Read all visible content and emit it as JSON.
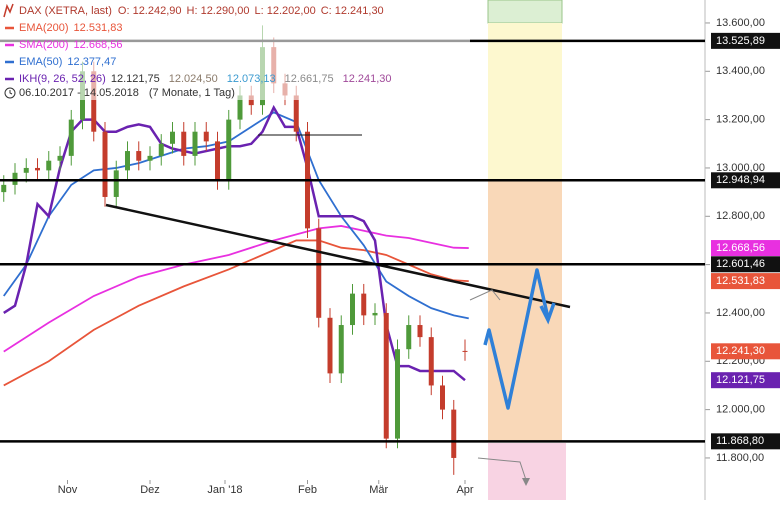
{
  "chart_data": {
    "type": "candlestick",
    "title": "DAX (XETRA, last)",
    "quote": [
      "O: 12.242,90",
      "H: 12.290,00",
      "L: 12.202,00",
      "C: 12.241,30"
    ],
    "period": "06.10.2017 - 14.05.2018",
    "period_note": "(7 Monate, 1 Tag)",
    "xlim": [
      -1,
      187
    ],
    "ylim": [
      11626,
      13695
    ],
    "xticks": [
      {
        "value": 17,
        "label": "Nov"
      },
      {
        "value": 39,
        "label": "Dez"
      },
      {
        "value": 59,
        "label": "Jan '18"
      },
      {
        "value": 81,
        "label": "Feb"
      },
      {
        "value": 100,
        "label": "Mär"
      },
      {
        "value": 123,
        "label": "Apr"
      }
    ],
    "yticks": [
      {
        "value": 13600,
        "label": "13.600,00"
      },
      {
        "value": 13400,
        "label": "13.400,00"
      },
      {
        "value": 13200,
        "label": "13.200,00"
      },
      {
        "value": 13000,
        "label": "13.000,00"
      },
      {
        "value": 12800,
        "label": "12.800,00"
      },
      {
        "value": 12600,
        "label": "12.600,00"
      },
      {
        "value": 12400,
        "label": "12.400,00"
      },
      {
        "value": 12200,
        "label": "12.200,00"
      },
      {
        "value": 12000,
        "label": "12.000,00"
      },
      {
        "value": 11800,
        "label": "11.800,00"
      }
    ],
    "x": [
      0,
      3,
      6,
      9,
      12,
      15,
      18,
      21,
      24,
      27,
      30,
      33,
      36,
      39,
      42,
      45,
      48,
      51,
      54,
      57,
      60,
      63,
      66,
      69,
      72,
      75,
      78,
      81,
      84,
      87,
      90,
      93,
      96,
      99,
      102,
      105,
      108,
      111,
      114,
      117,
      120,
      123
    ],
    "open": [
      12900,
      12930,
      12980,
      13000,
      12990,
      13030,
      13050,
      13200,
      13400,
      13150,
      12880,
      12990,
      13070,
      13030,
      13050,
      13100,
      13150,
      13050,
      13150,
      13110,
      12950,
      13200,
      13300,
      13260,
      13500,
      13350,
      13300,
      13150,
      12750,
      12380,
      12150,
      12350,
      12480,
      12390,
      12400,
      11880,
      12250,
      12350,
      12300,
      12100,
      12000,
      12242.9
    ],
    "high": [
      12970,
      13020,
      13040,
      13040,
      13070,
      13090,
      13240,
      13440,
      13440,
      13190,
      13030,
      13110,
      13110,
      13090,
      13140,
      13190,
      13190,
      13190,
      13190,
      13150,
      13240,
      13340,
      13340,
      13590,
      13540,
      13390,
      13340,
      13190,
      12790,
      12420,
      12390,
      12520,
      12520,
      12440,
      12440,
      12290,
      12390,
      12390,
      12340,
      12140,
      12040,
      12290
    ],
    "low": [
      12860,
      12890,
      12940,
      12950,
      12950,
      12990,
      13010,
      13160,
      13110,
      12840,
      12840,
      12950,
      12990,
      12990,
      13010,
      13060,
      13010,
      13010,
      13070,
      12910,
      12910,
      13160,
      13220,
      13220,
      13310,
      13260,
      13110,
      12710,
      12340,
      12110,
      12110,
      12310,
      12350,
      12350,
      11840,
      11840,
      12210,
      12260,
      12060,
      11960,
      11730,
      12202
    ],
    "close": [
      12930,
      12980,
      13000,
      12990,
      13030,
      13050,
      13200,
      13400,
      13150,
      12880,
      12990,
      13070,
      13030,
      13050,
      13100,
      13150,
      13050,
      13150,
      13110,
      12950,
      13200,
      13300,
      13260,
      13500,
      13350,
      13300,
      13150,
      12750,
      12380,
      12150,
      12350,
      12480,
      12390,
      12400,
      11880,
      12250,
      12350,
      12300,
      12100,
      12000,
      11800,
      12241.3
    ],
    "up_color": "#4f9a3a",
    "down_color": "#c43c2c",
    "series": [
      {
        "name": "EMA(200)",
        "color": "#e8553a",
        "x": [
          0,
          12,
          24,
          36,
          48,
          60,
          72,
          78,
          84,
          90,
          96,
          102,
          108,
          114,
          120,
          124
        ],
        "values": [
          12100,
          12200,
          12330,
          12430,
          12510,
          12580,
          12660,
          12700,
          12700,
          12670,
          12660,
          12640,
          12600,
          12560,
          12535,
          12531.83
        ],
        "last": {
          "value": 12531.83,
          "label": "12.531,83"
        }
      },
      {
        "name": "SMA(200)",
        "color": "#e830e0",
        "x": [
          0,
          12,
          24,
          36,
          48,
          60,
          72,
          84,
          90,
          96,
          102,
          108,
          114,
          120,
          124
        ],
        "values": [
          12240,
          12360,
          12470,
          12550,
          12600,
          12640,
          12700,
          12750,
          12760,
          12740,
          12720,
          12710,
          12690,
          12670,
          12668.56
        ],
        "last": {
          "value": 12668.56,
          "label": "12.668,56"
        }
      },
      {
        "name": "EMA(50)",
        "color": "#2f6fd0",
        "x": [
          0,
          6,
          12,
          18,
          24,
          30,
          36,
          42,
          48,
          54,
          60,
          66,
          72,
          78,
          84,
          90,
          96,
          102,
          108,
          114,
          120,
          124
        ],
        "values": [
          12470,
          12600,
          12800,
          12930,
          12990,
          13000,
          13020,
          13050,
          13080,
          13090,
          13110,
          13170,
          13230,
          13190,
          12950,
          12800,
          12680,
          12530,
          12470,
          12420,
          12390,
          12377.47
        ],
        "last": {
          "value": 12377.47,
          "label": "12.377,47"
        }
      },
      {
        "name": "IKH(9, 26, 52, 26)",
        "color": "#6a22b0",
        "x": [
          0,
          3,
          6,
          9,
          12,
          15,
          18,
          21,
          24,
          27,
          30,
          33,
          36,
          39,
          42,
          45,
          48,
          51,
          54,
          57,
          60,
          63,
          66,
          69,
          72,
          75,
          78,
          81,
          84,
          87,
          90,
          93,
          96,
          99,
          102,
          105,
          108,
          111,
          114,
          117,
          120,
          123
        ],
        "values": [
          12400,
          12430,
          12600,
          12850,
          12800,
          13000,
          13150,
          13200,
          13200,
          13150,
          13150,
          13170,
          13180,
          13170,
          13100,
          13080,
          13070,
          13060,
          13070,
          13080,
          13090,
          13090,
          13100,
          13150,
          13250,
          13170,
          13170,
          13000,
          12800,
          12800,
          12800,
          12800,
          12780,
          12700,
          12350,
          12180,
          12180,
          12160,
          12160,
          12160,
          12160,
          12121.75
        ],
        "last": {
          "value": 12121.75,
          "label": "12.121,75"
        }
      }
    ],
    "ikh_values": [
      {
        "text": "12.024,50",
        "color": "#8a7a6a"
      },
      {
        "text": "12.073,13",
        "color": "#3a9ad0"
      },
      {
        "text": "12.661,75",
        "color": "#8a8a8a"
      },
      {
        "text": "12.241,30",
        "color": "#a04a9a"
      }
    ],
    "last_price": {
      "value": 12241.3,
      "label": "12.241,30",
      "color": "#e8553a"
    },
    "levels": [
      {
        "value": 13525.89,
        "label": "13.525,89"
      },
      {
        "value": 12948.94,
        "label": "12.948,94"
      },
      {
        "value": 12601.46,
        "label": "12.601,46"
      },
      {
        "value": 11868.8,
        "label": "11.868,80"
      }
    ]
  }
}
